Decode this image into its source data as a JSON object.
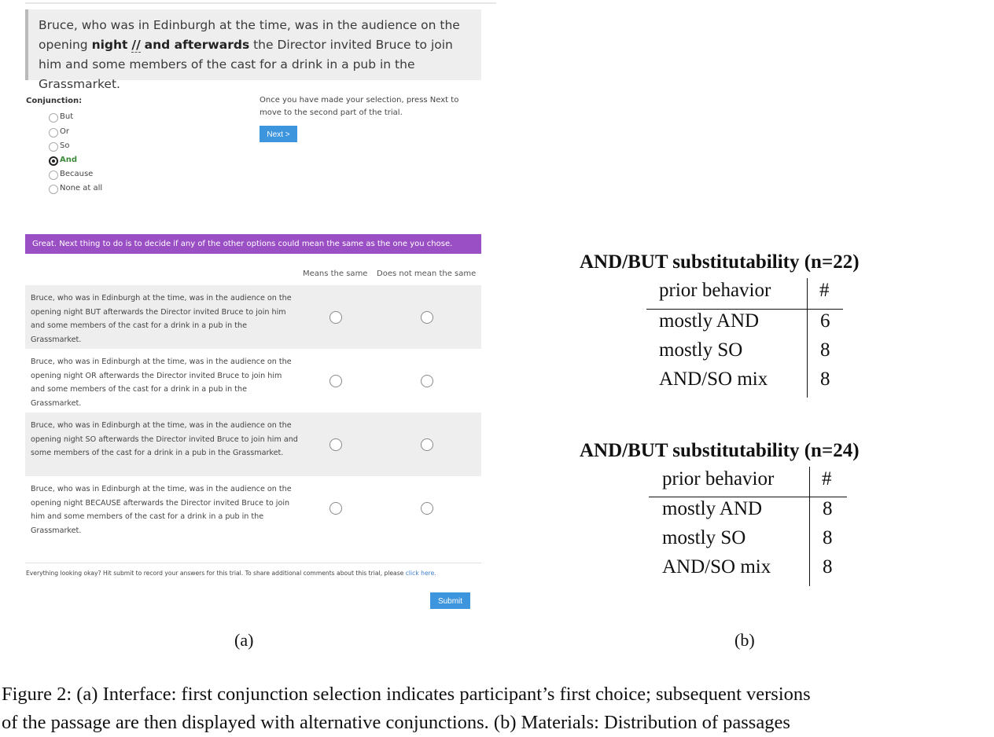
{
  "panel_a": {
    "passage": {
      "before": "Bruce, who was in Edinburgh at the time, was in the audience on the opening ",
      "bold1": "night",
      "slashes": "//",
      "bold2": "and afterwards",
      "after": " the Director invited Bruce to join him and some members of the cast for a drink in a pub in the Grassmarket."
    },
    "conjunction_label": "Conjunction:",
    "options": [
      "But",
      "Or",
      "So",
      "And",
      "Because",
      "None at all"
    ],
    "selected_option": "And",
    "instructions": "Once you have made your selection, press Next to move to the second part of the trial.",
    "next_label": "Next >",
    "banner": "Great. Next thing to do is to decide if any of the other options could mean the same as the one you chose.",
    "col_means_same": "Means the same",
    "col_not_same": "Does not mean the same",
    "rows": [
      "Bruce, who was in Edinburgh at the time, was in the audience on the opening night BUT afterwards the Director invited Bruce to join him and some members of the cast for a drink in a pub in the Grassmarket.",
      "Bruce, who was in Edinburgh at the time, was in the audience on the opening night OR afterwards the Director invited Bruce to join him and some members of the cast for a drink in a pub in the Grassmarket.",
      "Bruce, who was in Edinburgh at the time, was in the audience on the opening night SO afterwards the Director invited Bruce to join him and some members of the cast for a drink in a pub in the Grassmarket.",
      "Bruce, who was in Edinburgh at the time, was in the audience on the opening night BECAUSE afterwards the Director invited Bruce to join him and some members of the cast for a drink in a pub in the Grassmarket."
    ],
    "footer_text": "Everything looking okay? Hit submit to record your answers for this trial. To share additional comments about this trial, please ",
    "footer_link": "click here.",
    "submit_label": "Submit",
    "sublabel": "(a)"
  },
  "panel_b": {
    "tables": [
      {
        "title": "AND/BUT substitutability (n=22)",
        "header": [
          "prior behavior",
          "#"
        ],
        "rows": [
          [
            "mostly AND",
            "6"
          ],
          [
            "mostly SO",
            "8"
          ],
          [
            "AND/SO mix",
            "8"
          ]
        ]
      },
      {
        "title": "AND/BUT substitutability (n=24)",
        "header": [
          "prior behavior",
          "#"
        ],
        "rows": [
          [
            "mostly AND",
            "8"
          ],
          [
            "mostly SO",
            "8"
          ],
          [
            "AND/SO mix",
            "8"
          ]
        ]
      }
    ],
    "sublabel": "(b)"
  },
  "caption": {
    "line1": "Figure 2: (a) Interface: first conjunction selection indicates participant’s first choice; subsequent versions",
    "line2": "of the passage are then displayed with alternative conjunctions. (b) Materials: Distribution of passages"
  }
}
